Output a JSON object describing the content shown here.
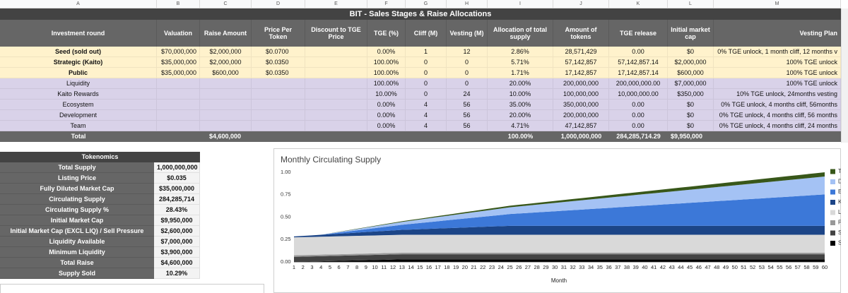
{
  "sheet": {
    "columns": [
      "A",
      "B",
      "C",
      "D",
      "E",
      "F",
      "G",
      "H",
      "I",
      "J",
      "K",
      "L",
      "M"
    ],
    "title": "BIT - Sales Stages & Raise Allocations",
    "header": [
      "Investment round",
      "Valuation",
      "Raise Amount",
      "Price Per Token",
      "Discount to TGE Price",
      "TGE (%)",
      "Cliff (M)",
      "Vesting (M)",
      "Allocation of total supply",
      "Amount of tokens",
      "TGE release",
      "Initial market cap",
      "Vesting Plan"
    ],
    "rows": [
      [
        "Seed (sold out)",
        "$70,000,000",
        "$2,000,000",
        "$0.0700",
        null,
        "0.00%",
        "1",
        "12",
        "2.86%",
        "28,571,429",
        "0.00",
        "$0",
        "0% TGE unlock, 1 month cliff, 12 months v"
      ],
      [
        "Strategic (Kaito)",
        "$35,000,000",
        "$2,000,000",
        "$0.0350",
        null,
        "100.00%",
        "0",
        "0",
        "5.71%",
        "57,142,857",
        "57,142,857.14",
        "$2,000,000",
        "100% TGE unlock"
      ],
      [
        "Public",
        "$35,000,000",
        "$600,000",
        "$0.0350",
        null,
        "100.00%",
        "0",
        "0",
        "1.71%",
        "17,142,857",
        "17,142,857.14",
        "$600,000",
        "100% TGE unlock"
      ],
      [
        "Liquidity",
        null,
        null,
        null,
        null,
        "100.00%",
        "0",
        "0",
        "20.00%",
        "200,000,000",
        "200,000,000.00",
        "$7,000,000",
        "100% TGE unlock"
      ],
      [
        "Kaito Rewards",
        null,
        null,
        null,
        null,
        "10.00%",
        "0",
        "24",
        "10.00%",
        "100,000,000",
        "10,000,000.00",
        "$350,000",
        "10% TGE unlock, 24months vesting"
      ],
      [
        "Ecosystem",
        null,
        null,
        null,
        null,
        "0.00%",
        "4",
        "56",
        "35.00%",
        "350,000,000",
        "0.00",
        "$0",
        "0% TGE unlock, 4 months cliff, 56months"
      ],
      [
        "Development",
        null,
        null,
        null,
        null,
        "0.00%",
        "4",
        "56",
        "20.00%",
        "200,000,000",
        "0.00",
        "$0",
        "0% TGE unlock, 4 months cliff, 56 months"
      ],
      [
        "Team",
        null,
        null,
        null,
        null,
        "0.00%",
        "4",
        "56",
        "4.71%",
        "47,142,857",
        "0.00",
        "$0",
        "0% TGE unlock, 4 months cliff, 24 months"
      ]
    ],
    "total": [
      "Total",
      null,
      "$4,600,000",
      null,
      null,
      null,
      null,
      null,
      "100.00%",
      "1,000,000,000",
      "284,285,714.29",
      "$9,950,000",
      null
    ]
  },
  "tokenomics": {
    "title": "Tokenomics",
    "rows": [
      [
        "Total Supply",
        "1,000,000,000"
      ],
      [
        "Listing Price",
        "$0.035"
      ],
      [
        "Fully Diluted Market Cap",
        "$35,000,000"
      ],
      [
        "Circulating Supply",
        "284,285,714"
      ],
      [
        "Circulating Supply %",
        "28.43%"
      ],
      [
        "Initial Market Cap",
        "$9,950,000"
      ],
      [
        "Initial Market Cap (EXCL LIQ) / Sell Pressure",
        "$2,600,000"
      ],
      [
        "Liquidity Available",
        "$7,000,000"
      ],
      [
        "Minimum Liquidity",
        "$3,900,000"
      ],
      [
        "Total Raise",
        "$4,600,000"
      ],
      [
        "Supply Sold",
        "10.29%"
      ]
    ]
  },
  "chart_data": {
    "type": "area",
    "stacked": true,
    "title": "Monthly Circulating Supply",
    "xlabel": "Month",
    "x": [
      1,
      2,
      3,
      4,
      5,
      6,
      7,
      8,
      9,
      10,
      11,
      12,
      13,
      14,
      15,
      16,
      17,
      18,
      19,
      20,
      21,
      22,
      23,
      24,
      25,
      26,
      27,
      28,
      29,
      30,
      31,
      32,
      33,
      34,
      35,
      36,
      37,
      38,
      39,
      40,
      41,
      42,
      43,
      44,
      45,
      46,
      47,
      48,
      49,
      50,
      51,
      52,
      53,
      54,
      55,
      56,
      57,
      58,
      59,
      60
    ],
    "xlim": [
      1,
      60
    ],
    "ylim": [
      0,
      1
    ],
    "yticks": [
      {
        "value": 0,
        "label": "0.00"
      },
      {
        "value": 0.25,
        "label": "0.25"
      },
      {
        "value": 0.5,
        "label": "0.50"
      },
      {
        "value": 0.75,
        "label": "0.75"
      },
      {
        "value": 1,
        "label": "1.00"
      }
    ],
    "grid": false,
    "legend": "right",
    "series": [
      {
        "name": "Seed (sold out)",
        "color": "#000000",
        "values": [
          0,
          0.0024,
          0.0048,
          0.0072,
          0.0095,
          0.0119,
          0.0143,
          0.0167,
          0.0191,
          0.0215,
          0.0238,
          0.0262,
          0.0286,
          0.0286,
          0.0286,
          0.0286,
          0.0286,
          0.0286,
          0.0286,
          0.0286,
          0.0286,
          0.0286,
          0.0286,
          0.0286,
          0.0286,
          0.0286,
          0.0286,
          0.0286,
          0.0286,
          0.0286,
          0.0286,
          0.0286,
          0.0286,
          0.0286,
          0.0286,
          0.0286,
          0.0286,
          0.0286,
          0.0286,
          0.0286,
          0.0286,
          0.0286,
          0.0286,
          0.0286,
          0.0286,
          0.0286,
          0.0286,
          0.0286,
          0.0286,
          0.0286,
          0.0286,
          0.0286,
          0.0286,
          0.0286,
          0.0286,
          0.0286,
          0.0286,
          0.0286,
          0.0286,
          0.0286
        ]
      },
      {
        "name": "Strategic (Kaito)",
        "color": "#434343",
        "values": [
          0.0571,
          0.0571,
          0.0571,
          0.0571,
          0.0571,
          0.0571,
          0.0571,
          0.0571,
          0.0571,
          0.0571,
          0.0571,
          0.0571,
          0.0571,
          0.0571,
          0.0571,
          0.0571,
          0.0571,
          0.0571,
          0.0571,
          0.0571,
          0.0571,
          0.0571,
          0.0571,
          0.0571,
          0.0571,
          0.0571,
          0.0571,
          0.0571,
          0.0571,
          0.0571,
          0.0571,
          0.0571,
          0.0571,
          0.0571,
          0.0571,
          0.0571,
          0.0571,
          0.0571,
          0.0571,
          0.0571,
          0.0571,
          0.0571,
          0.0571,
          0.0571,
          0.0571,
          0.0571,
          0.0571,
          0.0571,
          0.0571,
          0.0571,
          0.0571,
          0.0571,
          0.0571,
          0.0571,
          0.0571,
          0.0571,
          0.0571,
          0.0571,
          0.0571,
          0.0571
        ]
      },
      {
        "name": "Public",
        "color": "#999999",
        "values": [
          0.0171,
          0.0171,
          0.0171,
          0.0171,
          0.0171,
          0.0171,
          0.0171,
          0.0171,
          0.0171,
          0.0171,
          0.0171,
          0.0171,
          0.0171,
          0.0171,
          0.0171,
          0.0171,
          0.0171,
          0.0171,
          0.0171,
          0.0171,
          0.0171,
          0.0171,
          0.0171,
          0.0171,
          0.0171,
          0.0171,
          0.0171,
          0.0171,
          0.0171,
          0.0171,
          0.0171,
          0.0171,
          0.0171,
          0.0171,
          0.0171,
          0.0171,
          0.0171,
          0.0171,
          0.0171,
          0.0171,
          0.0171,
          0.0171,
          0.0171,
          0.0171,
          0.0171,
          0.0171,
          0.0171,
          0.0171,
          0.0171,
          0.0171,
          0.0171,
          0.0171,
          0.0171,
          0.0171,
          0.0171,
          0.0171,
          0.0171,
          0.0171,
          0.0171,
          0.0171
        ]
      },
      {
        "name": "Liquidity",
        "color": "#d9d9d9",
        "values": [
          0.2,
          0.2,
          0.2,
          0.2,
          0.2,
          0.2,
          0.2,
          0.2,
          0.2,
          0.2,
          0.2,
          0.2,
          0.2,
          0.2,
          0.2,
          0.2,
          0.2,
          0.2,
          0.2,
          0.2,
          0.2,
          0.2,
          0.2,
          0.2,
          0.2,
          0.2,
          0.2,
          0.2,
          0.2,
          0.2,
          0.2,
          0.2,
          0.2,
          0.2,
          0.2,
          0.2,
          0.2,
          0.2,
          0.2,
          0.2,
          0.2,
          0.2,
          0.2,
          0.2,
          0.2,
          0.2,
          0.2,
          0.2,
          0.2,
          0.2,
          0.2,
          0.2,
          0.2,
          0.2,
          0.2,
          0.2,
          0.2,
          0.2,
          0.2,
          0.2
        ]
      },
      {
        "name": "Kaito Rewards",
        "color": "#1c4587",
        "values": [
          0.01,
          0.0138,
          0.0175,
          0.0213,
          0.025,
          0.0288,
          0.0325,
          0.0363,
          0.04,
          0.0438,
          0.0475,
          0.0513,
          0.055,
          0.0588,
          0.0625,
          0.0663,
          0.07,
          0.0738,
          0.0775,
          0.0813,
          0.085,
          0.0888,
          0.0925,
          0.0963,
          0.1,
          0.1,
          0.1,
          0.1,
          0.1,
          0.1,
          0.1,
          0.1,
          0.1,
          0.1,
          0.1,
          0.1,
          0.1,
          0.1,
          0.1,
          0.1,
          0.1,
          0.1,
          0.1,
          0.1,
          0.1,
          0.1,
          0.1,
          0.1,
          0.1,
          0.1,
          0.1,
          0.1,
          0.1,
          0.1,
          0.1,
          0.1,
          0.1,
          0.1,
          0.1,
          0.1
        ]
      },
      {
        "name": "Ecosystem",
        "color": "#3c78d8",
        "values": [
          0,
          0,
          0,
          0,
          0.0063,
          0.0125,
          0.0188,
          0.025,
          0.0313,
          0.0375,
          0.0438,
          0.05,
          0.0563,
          0.0625,
          0.0688,
          0.075,
          0.0813,
          0.0875,
          0.0938,
          0.1,
          0.1063,
          0.1125,
          0.1188,
          0.125,
          0.1313,
          0.1375,
          0.1438,
          0.15,
          0.1563,
          0.1625,
          0.1688,
          0.175,
          0.1813,
          0.1875,
          0.1938,
          0.2,
          0.2063,
          0.2125,
          0.2188,
          0.225,
          0.2313,
          0.2375,
          0.2438,
          0.25,
          0.2563,
          0.2625,
          0.2688,
          0.275,
          0.2813,
          0.2875,
          0.2938,
          0.3,
          0.3063,
          0.3125,
          0.3188,
          0.325,
          0.3313,
          0.3375,
          0.3438,
          0.35
        ]
      },
      {
        "name": "Development",
        "color": "#a4c2f4",
        "values": [
          0,
          0,
          0,
          0,
          0.0036,
          0.0071,
          0.0107,
          0.0143,
          0.0179,
          0.0214,
          0.025,
          0.0286,
          0.0321,
          0.0357,
          0.0393,
          0.0429,
          0.0464,
          0.05,
          0.0536,
          0.0571,
          0.0607,
          0.0643,
          0.0679,
          0.0714,
          0.075,
          0.0786,
          0.0821,
          0.0857,
          0.0893,
          0.0929,
          0.0964,
          0.1,
          0.1036,
          0.1071,
          0.1107,
          0.1143,
          0.1179,
          0.1214,
          0.125,
          0.1286,
          0.1321,
          0.1357,
          0.1393,
          0.1429,
          0.1464,
          0.15,
          0.1536,
          0.1571,
          0.1607,
          0.1643,
          0.1679,
          0.1714,
          0.175,
          0.1786,
          0.1821,
          0.1857,
          0.1893,
          0.1929,
          0.1964,
          0.2
        ]
      },
      {
        "name": "Team",
        "color": "#38571a",
        "values": [
          0,
          0,
          0,
          0,
          0.0008,
          0.0017,
          0.0025,
          0.0034,
          0.0042,
          0.005,
          0.0059,
          0.0067,
          0.0076,
          0.0084,
          0.0093,
          0.0101,
          0.0109,
          0.0118,
          0.0126,
          0.0135,
          0.0143,
          0.0151,
          0.016,
          0.0168,
          0.0177,
          0.0185,
          0.0193,
          0.0202,
          0.021,
          0.0219,
          0.0227,
          0.0236,
          0.0244,
          0.0252,
          0.0261,
          0.0269,
          0.0278,
          0.0286,
          0.0294,
          0.0303,
          0.0311,
          0.032,
          0.0328,
          0.0336,
          0.0345,
          0.0353,
          0.0362,
          0.037,
          0.0378,
          0.0387,
          0.0395,
          0.0404,
          0.0412,
          0.0421,
          0.0429,
          0.0437,
          0.0446,
          0.0454,
          0.0463,
          0.0471
        ]
      }
    ]
  }
}
